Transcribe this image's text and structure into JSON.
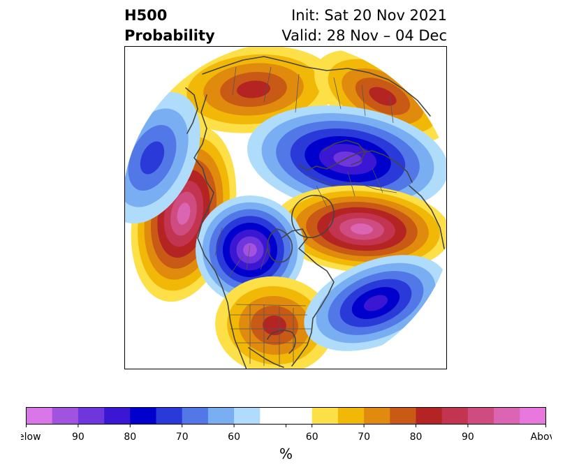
{
  "title": {
    "variable": "H500",
    "product": "Probability",
    "init": "Init: Sat 20 Nov 2021",
    "valid": "Valid: 28 Nov – 04 Dec"
  },
  "colorbar": {
    "unit": "%",
    "below_colors": [
      "#d977e8",
      "#a153e0",
      "#6f36dd",
      "#3b17d3",
      "#0000cc",
      "#2a3ad8",
      "#5278e8",
      "#7aaef2",
      "#aedcfa"
    ],
    "neutral_color": "#ffffff",
    "above_colors": [
      "#fde047",
      "#f2b807",
      "#e08a0e",
      "#c85a16",
      "#b32423",
      "#c23450",
      "#cf4c80",
      "#db65b2",
      "#e878dd"
    ],
    "tick_labels": [
      "Below",
      "90",
      "80",
      "70",
      "60",
      "60",
      "70",
      "80",
      "90",
      "Above"
    ]
  },
  "anomalies": [
    {
      "name": "north-siberia-above",
      "sign": "above",
      "level": 5
    },
    {
      "name": "east-siberia-above",
      "sign": "above",
      "level": 5
    },
    {
      "name": "scandinavia-below",
      "sign": "below",
      "level": 7
    },
    {
      "name": "north-atlantic-above",
      "sign": "above",
      "level": 8
    },
    {
      "name": "north-pacific-above",
      "sign": "above",
      "level": 8
    },
    {
      "name": "western-canada-below",
      "sign": "below",
      "level": 8
    },
    {
      "name": "southern-us-above",
      "sign": "above",
      "level": 5
    },
    {
      "name": "central-atlantic-below",
      "sign": "below",
      "level": 6
    },
    {
      "name": "arctic-west-below",
      "sign": "below",
      "level": 4
    }
  ]
}
